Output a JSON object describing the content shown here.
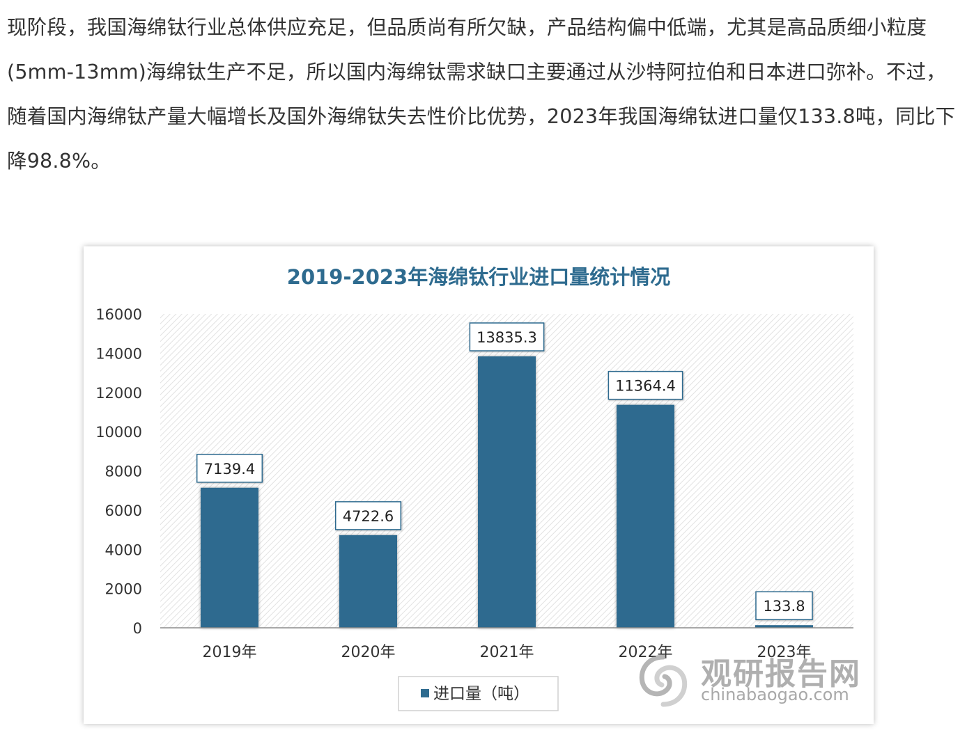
{
  "article": {
    "paragraph": "现阶段，我国海绵钛行业总体供应充足，但品质尚有所欠缺，产品结构偏中低端，尤其是高品质细小粒度(5mm-13mm)海绵钛生产不足，所以国内海绵钛需求缺口主要通过从沙特阿拉伯和日本进口弥补。不过，随着国内海绵钛产量大幅增长及国外海绵钛失去性价比优势，2023年我国海绵钛进口量仅133.8吨，同比下降98.8%。"
  },
  "chart_data": {
    "type": "bar",
    "title": "2019-2023年海绵钛行业进口量统计情况",
    "categories": [
      "2019年",
      "2020年",
      "2021年",
      "2022年",
      "2023年"
    ],
    "series": [
      {
        "name": "进口量（吨）",
        "values": [
          7139.4,
          4722.6,
          13835.3,
          11364.4,
          133.8
        ],
        "labels": [
          "7139.4",
          "4722.6",
          "13835.3",
          "11364.4",
          "133.8"
        ]
      }
    ],
    "ylim": [
      0,
      16000
    ],
    "yticks": [
      0,
      2000,
      4000,
      6000,
      8000,
      10000,
      12000,
      14000,
      16000
    ],
    "grid": false,
    "legend_position": "bottom",
    "colors": {
      "bar": "#2e6b8f",
      "title": "#2e6b8f",
      "label_border": "#2e6b8f"
    }
  },
  "watermark": {
    "brand_cn": "观研报告网",
    "brand_en": "chinabaogao.com",
    "logo_icon": "swirl-logo-icon"
  }
}
